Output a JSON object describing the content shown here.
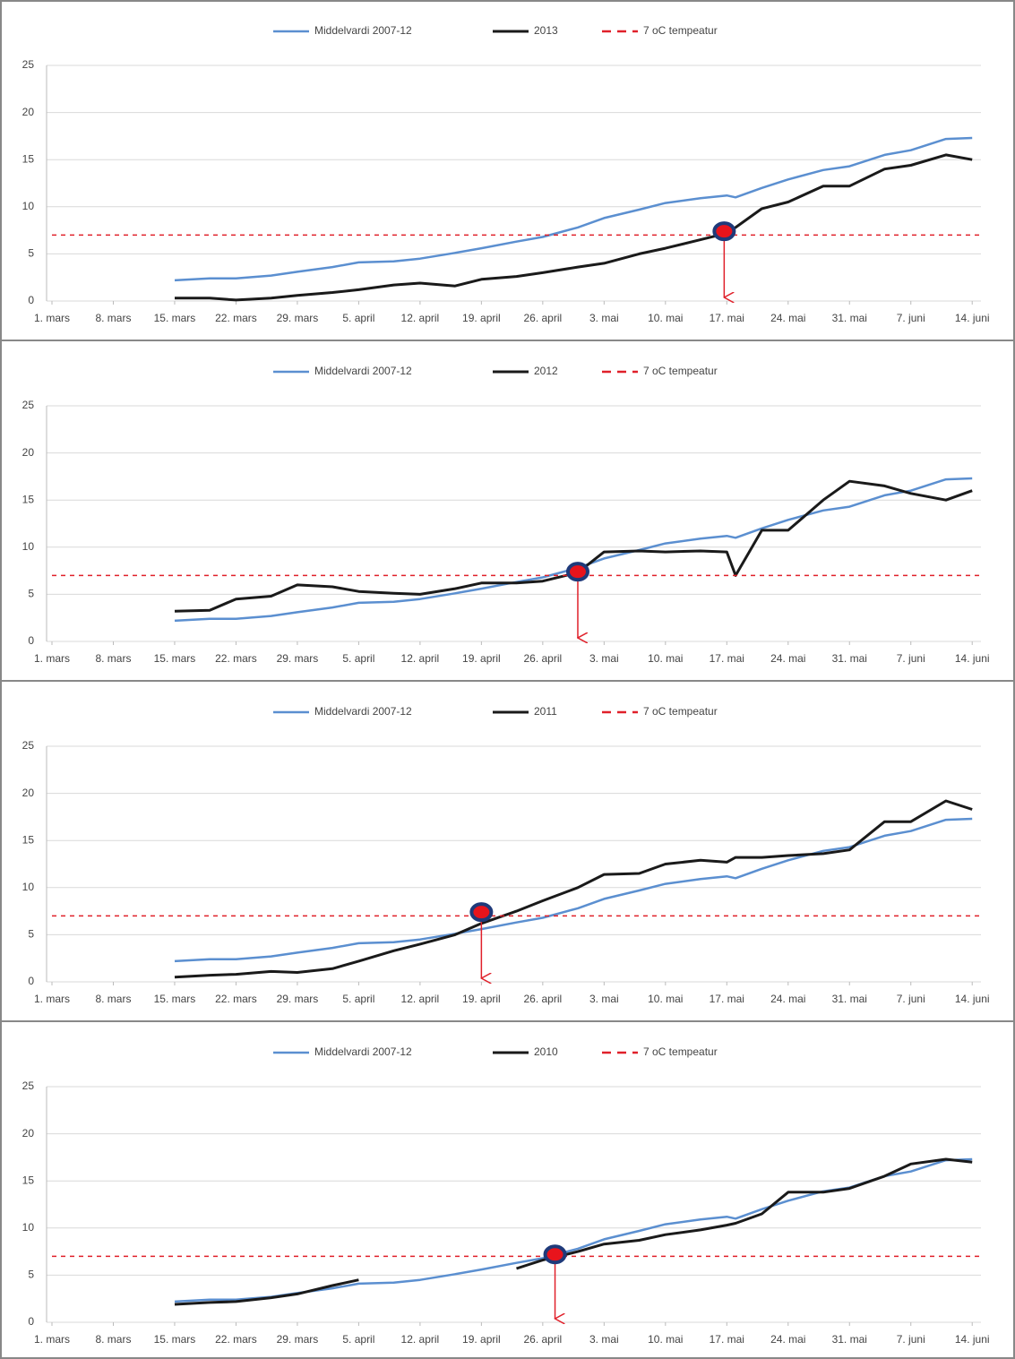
{
  "chart_data": [
    {
      "type": "line",
      "x": [
        14,
        18,
        21,
        25,
        28,
        32,
        35,
        39,
        42,
        46,
        49,
        53,
        56,
        60,
        63,
        67,
        70,
        74,
        77,
        78,
        81,
        84,
        88,
        91,
        95,
        98,
        102,
        105
      ],
      "series": [
        {
          "name": "Middelvardi 2007-12",
          "color": "#5b8fd0",
          "values": [
            2.2,
            2.4,
            2.4,
            2.7,
            3.1,
            3.6,
            4.1,
            4.2,
            4.5,
            5.1,
            5.6,
            6.3,
            6.8,
            7.8,
            8.8,
            9.7,
            10.4,
            10.9,
            11.2,
            11.0,
            12.0,
            12.9,
            13.9,
            14.3,
            15.5,
            16.0,
            17.2,
            17.3
          ]
        },
        {
          "name": "2013",
          "color": "#1a1a1a",
          "values": [
            0.3,
            0.3,
            0.1,
            0.3,
            0.6,
            0.9,
            1.2,
            1.7,
            1.9,
            1.6,
            2.3,
            2.6,
            3.0,
            3.6,
            4.0,
            5.0,
            5.6,
            6.5,
            7.2,
            7.8,
            9.8,
            10.5,
            12.2,
            12.2,
            14.0,
            14.4,
            15.5,
            15.0
          ]
        },
        {
          "name": "7 oC tempeatur",
          "color": "#e0202a",
          "dash": true,
          "hline": 7
        }
      ],
      "highlight": {
        "x": 76.7,
        "y": 7.4
      },
      "xlim": [
        0,
        106
      ],
      "ylim": [
        0,
        25
      ],
      "yticks": [
        0,
        5,
        10,
        15,
        20,
        25
      ],
      "xticks": [
        {
          "value": 0,
          "label": "1. mars"
        },
        {
          "value": 7,
          "label": "8. mars"
        },
        {
          "value": 14,
          "label": "15. mars"
        },
        {
          "value": 21,
          "label": "22. mars"
        },
        {
          "value": 28,
          "label": "29. mars"
        },
        {
          "value": 35,
          "label": "5. april"
        },
        {
          "value": 42,
          "label": "12. april"
        },
        {
          "value": 49,
          "label": "19. april"
        },
        {
          "value": 56,
          "label": "26. april"
        },
        {
          "value": 63,
          "label": "3. mai"
        },
        {
          "value": 70,
          "label": "10. mai"
        },
        {
          "value": 77,
          "label": "17. mai"
        },
        {
          "value": 84,
          "label": "24. mai"
        },
        {
          "value": 91,
          "label": "31. mai"
        },
        {
          "value": 98,
          "label": "7. juni"
        },
        {
          "value": 105,
          "label": "14. juni"
        }
      ],
      "grid": true
    },
    {
      "type": "line",
      "x": [
        14,
        18,
        21,
        25,
        28,
        32,
        35,
        39,
        42,
        46,
        49,
        53,
        56,
        60,
        63,
        67,
        70,
        74,
        77,
        78,
        81,
        84,
        88,
        91,
        95,
        98,
        102,
        105
      ],
      "series": [
        {
          "name": "Middelvardi 2007-12",
          "color": "#5b8fd0",
          "values": [
            2.2,
            2.4,
            2.4,
            2.7,
            3.1,
            3.6,
            4.1,
            4.2,
            4.5,
            5.1,
            5.6,
            6.3,
            6.8,
            7.8,
            8.8,
            9.7,
            10.4,
            10.9,
            11.2,
            11.0,
            12.0,
            12.9,
            13.9,
            14.3,
            15.5,
            16.0,
            17.2,
            17.3
          ]
        },
        {
          "name": "2012",
          "color": "#1a1a1a",
          "values": [
            3.2,
            3.3,
            4.5,
            4.8,
            6.0,
            5.8,
            5.3,
            5.1,
            5.0,
            5.6,
            6.2,
            6.2,
            6.4,
            7.3,
            9.5,
            9.6,
            9.5,
            9.6,
            9.5,
            7.0,
            11.8,
            11.8,
            15.0,
            17.0,
            16.5,
            15.7,
            15.0,
            16.0
          ]
        },
        {
          "name": "7 oC tempeatur",
          "color": "#e0202a",
          "dash": true,
          "hline": 7
        }
      ],
      "highlight": {
        "x": 60,
        "y": 7.4
      },
      "xlim": [
        0,
        106
      ],
      "ylim": [
        0,
        25
      ],
      "yticks": [
        0,
        5,
        10,
        15,
        20,
        25
      ],
      "xticks": [
        {
          "value": 0,
          "label": "1. mars"
        },
        {
          "value": 7,
          "label": "8. mars"
        },
        {
          "value": 14,
          "label": "15. mars"
        },
        {
          "value": 21,
          "label": "22. mars"
        },
        {
          "value": 28,
          "label": "29. mars"
        },
        {
          "value": 35,
          "label": "5. april"
        },
        {
          "value": 42,
          "label": "12. april"
        },
        {
          "value": 49,
          "label": "19. april"
        },
        {
          "value": 56,
          "label": "26. april"
        },
        {
          "value": 63,
          "label": "3. mai"
        },
        {
          "value": 70,
          "label": "10. mai"
        },
        {
          "value": 77,
          "label": "17. mai"
        },
        {
          "value": 84,
          "label": "24. mai"
        },
        {
          "value": 91,
          "label": "31. mai"
        },
        {
          "value": 98,
          "label": "7. juni"
        },
        {
          "value": 105,
          "label": "14. juni"
        }
      ],
      "grid": true
    },
    {
      "type": "line",
      "x": [
        14,
        18,
        21,
        25,
        28,
        32,
        35,
        39,
        42,
        46,
        49,
        53,
        56,
        60,
        63,
        67,
        70,
        74,
        77,
        78,
        81,
        84,
        88,
        91,
        95,
        98,
        102,
        105
      ],
      "series": [
        {
          "name": "Middelvardi 2007-12",
          "color": "#5b8fd0",
          "values": [
            2.2,
            2.4,
            2.4,
            2.7,
            3.1,
            3.6,
            4.1,
            4.2,
            4.5,
            5.1,
            5.6,
            6.3,
            6.8,
            7.8,
            8.8,
            9.7,
            10.4,
            10.9,
            11.2,
            11.0,
            12.0,
            12.9,
            13.9,
            14.3,
            15.5,
            16.0,
            17.2,
            17.3
          ]
        },
        {
          "name": "2011",
          "color": "#1a1a1a",
          "values": [
            0.5,
            0.7,
            0.8,
            1.1,
            1.0,
            1.4,
            2.2,
            3.3,
            4.0,
            5.0,
            6.2,
            7.5,
            8.6,
            10.0,
            11.4,
            11.5,
            12.5,
            12.9,
            12.7,
            13.2,
            13.2,
            13.4,
            13.6,
            14.0,
            17.0,
            17.0,
            19.2,
            18.3
          ]
        },
        {
          "name": "7 oC tempeatur",
          "color": "#e0202a",
          "dash": true,
          "hline": 7
        }
      ],
      "highlight": {
        "x": 49,
        "y": 7.4
      },
      "xlim": [
        0,
        106
      ],
      "ylim": [
        0,
        25
      ],
      "yticks": [
        0,
        5,
        10,
        15,
        20,
        25
      ],
      "xticks": [
        {
          "value": 0,
          "label": "1. mars"
        },
        {
          "value": 7,
          "label": "8. mars"
        },
        {
          "value": 14,
          "label": "15. mars"
        },
        {
          "value": 21,
          "label": "22. mars"
        },
        {
          "value": 28,
          "label": "29. mars"
        },
        {
          "value": 35,
          "label": "5. april"
        },
        {
          "value": 42,
          "label": "12. april"
        },
        {
          "value": 49,
          "label": "19. april"
        },
        {
          "value": 56,
          "label": "26. april"
        },
        {
          "value": 63,
          "label": "3. mai"
        },
        {
          "value": 70,
          "label": "10. mai"
        },
        {
          "value": 77,
          "label": "17. mai"
        },
        {
          "value": 84,
          "label": "24. mai"
        },
        {
          "value": 91,
          "label": "31. mai"
        },
        {
          "value": 98,
          "label": "7. juni"
        },
        {
          "value": 105,
          "label": "14. juni"
        }
      ],
      "grid": true
    },
    {
      "type": "line",
      "x": [
        14,
        18,
        21,
        25,
        28,
        32,
        35,
        39,
        42,
        46,
        49,
        53,
        56,
        60,
        63,
        67,
        70,
        74,
        77,
        78,
        81,
        84,
        88,
        91,
        95,
        98,
        102,
        105
      ],
      "series": [
        {
          "name": "Middelvardi 2007-12",
          "color": "#5b8fd0",
          "values": [
            2.2,
            2.4,
            2.4,
            2.7,
            3.1,
            3.6,
            4.1,
            4.2,
            4.5,
            5.1,
            5.6,
            6.3,
            6.8,
            7.8,
            8.8,
            9.7,
            10.4,
            10.9,
            11.2,
            11.0,
            12.0,
            12.9,
            13.9,
            14.3,
            15.5,
            16.0,
            17.2,
            17.3
          ]
        },
        {
          "name": "2010",
          "color": "#1a1a1a",
          "values": [
            1.9,
            2.1,
            2.2,
            2.6,
            3.0,
            3.9,
            4.5,
            null,
            null,
            null,
            null,
            5.7,
            6.6,
            7.5,
            8.3,
            8.7,
            9.3,
            9.8,
            10.3,
            10.5,
            11.5,
            13.8,
            13.8,
            14.2,
            15.5,
            16.8,
            17.3,
            17.0
          ]
        },
        {
          "name": "7 oC tempeatur",
          "color": "#e0202a",
          "dash": true,
          "hline": 7
        }
      ],
      "highlight": {
        "x": 57.4,
        "y": 7.2
      },
      "xlim": [
        0,
        106
      ],
      "ylim": [
        0,
        25
      ],
      "yticks": [
        0,
        5,
        10,
        15,
        20,
        25
      ],
      "xticks": [
        {
          "value": 0,
          "label": "1. mars"
        },
        {
          "value": 7,
          "label": "8. mars"
        },
        {
          "value": 14,
          "label": "15. mars"
        },
        {
          "value": 21,
          "label": "22. mars"
        },
        {
          "value": 28,
          "label": "29. mars"
        },
        {
          "value": 35,
          "label": "5. april"
        },
        {
          "value": 42,
          "label": "12. april"
        },
        {
          "value": 49,
          "label": "19. april"
        },
        {
          "value": 56,
          "label": "26. april"
        },
        {
          "value": 63,
          "label": "3. mai"
        },
        {
          "value": 70,
          "label": "10. mai"
        },
        {
          "value": 77,
          "label": "17. mai"
        },
        {
          "value": 84,
          "label": "24. mai"
        },
        {
          "value": 91,
          "label": "31. mai"
        },
        {
          "value": 98,
          "label": "7. juni"
        },
        {
          "value": 105,
          "label": "14. juni"
        }
      ],
      "grid": true
    }
  ]
}
